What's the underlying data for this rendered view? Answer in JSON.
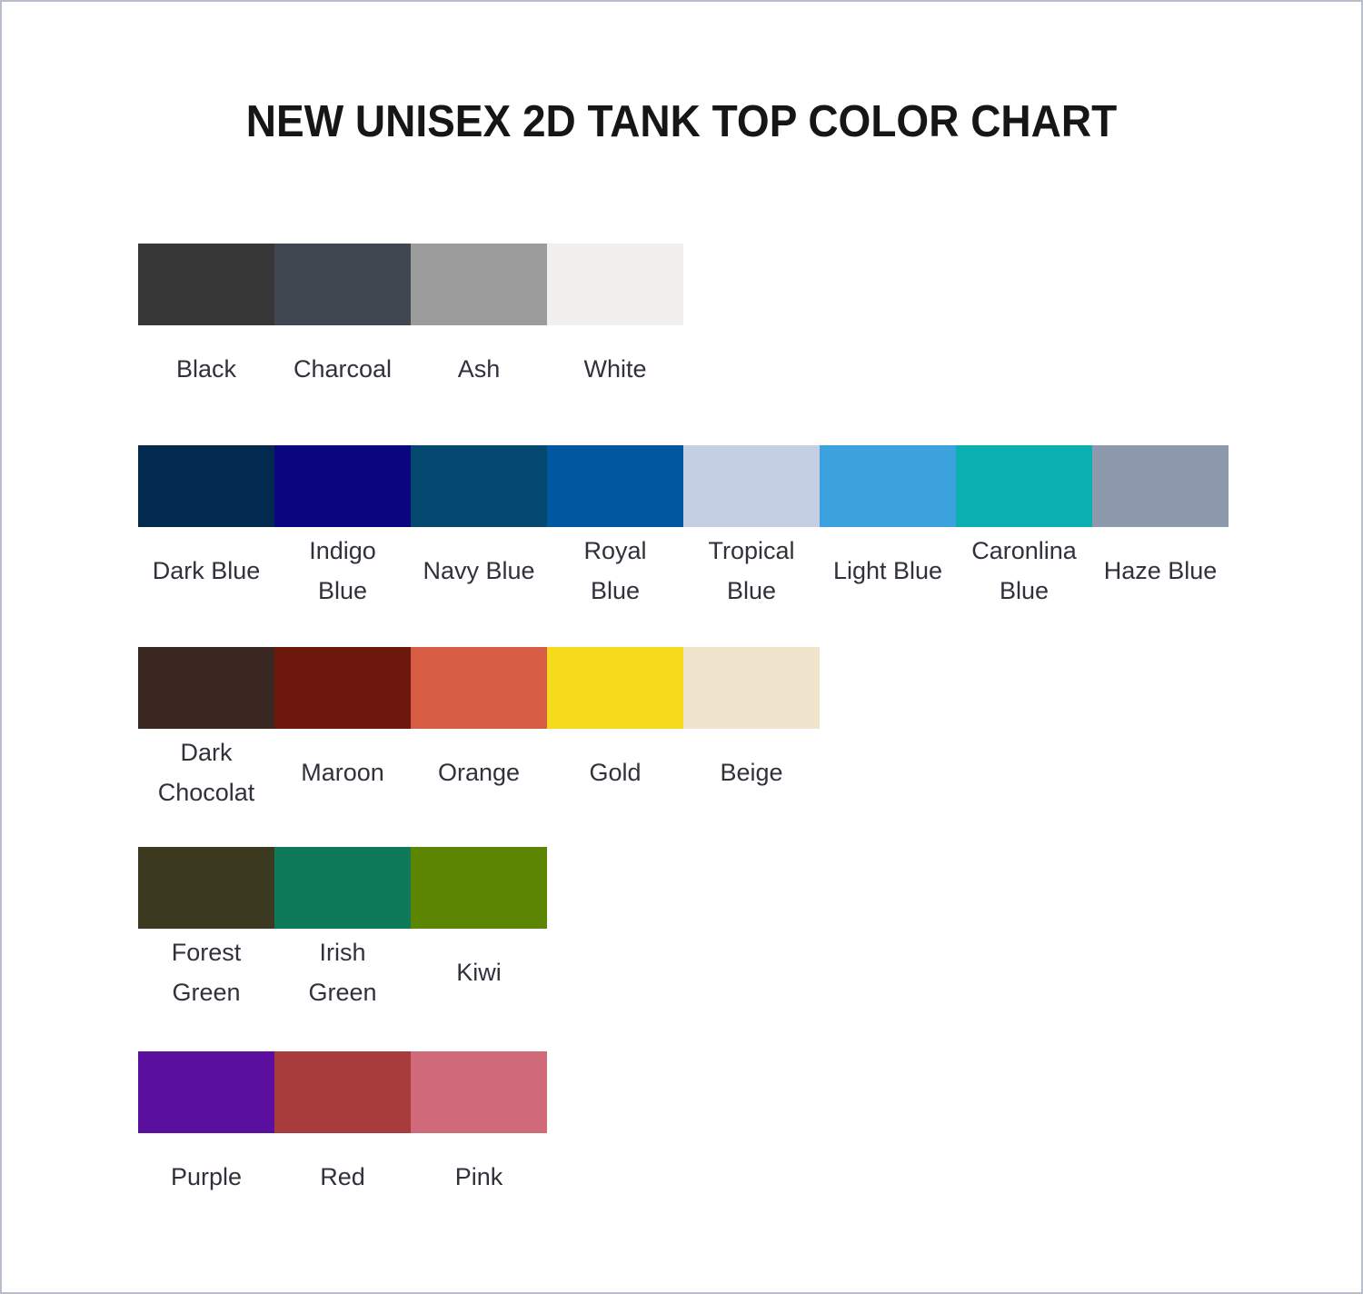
{
  "title": "NEW UNISEX 2D TANK TOP COLOR CHART",
  "chart_data": {
    "type": "table",
    "title": "NEW UNISEX 2D TANK TOP COLOR CHART",
    "layout": "5 horizontal swatch rows with centered labels beneath each swatch",
    "rows": [
      {
        "name": "neutrals",
        "swatches": [
          {
            "label": "Black",
            "color": "#373737"
          },
          {
            "label": "Charcoal",
            "color": "#414750"
          },
          {
            "label": "Ash",
            "color": "#9d9c9c"
          },
          {
            "label": "White",
            "color": "#f1f0ef"
          }
        ]
      },
      {
        "name": "blues",
        "swatches": [
          {
            "label": "Dark Blue",
            "color": "#02294e"
          },
          {
            "label": "Indigo\nBlue",
            "color": "#0a0680"
          },
          {
            "label": "Navy Blue",
            "color": "#03486f"
          },
          {
            "label": "Royal\nBlue",
            "color": "#0058a0"
          },
          {
            "label": "Tropical\nBlue",
            "color": "#c5cfe4"
          },
          {
            "label": "Light Blue",
            "color": "#3ba2de"
          },
          {
            "label": "Caronlina\nBlue",
            "color": "#09b0af"
          },
          {
            "label": "Haze Blue",
            "color": "#8d99ac"
          }
        ]
      },
      {
        "name": "warms",
        "swatches": [
          {
            "label": "Dark\nChocolat",
            "color": "#3a2721"
          },
          {
            "label": "Maroon",
            "color": "#6c180c"
          },
          {
            "label": "Orange",
            "color": "#d65c43"
          },
          {
            "label": "Gold",
            "color": "#f8da1c"
          },
          {
            "label": "Beige",
            "color": "#f1e4cd"
          }
        ]
      },
      {
        "name": "greens",
        "swatches": [
          {
            "label": "Forest\nGreen",
            "color": "#3b3a20"
          },
          {
            "label": "Irish\nGreen",
            "color": "#0e7a59"
          },
          {
            "label": "Kiwi",
            "color": "#5c8502"
          }
        ]
      },
      {
        "name": "purples-reds",
        "swatches": [
          {
            "label": "Purple",
            "color": "#5a0f9e"
          },
          {
            "label": "Red",
            "color": "#a83c3c"
          },
          {
            "label": "Pink",
            "color": "#d0697a"
          }
        ]
      }
    ]
  },
  "style": {
    "page_border": "#b7bec9",
    "title_color": "#161616",
    "label_color": "#31313b",
    "background": "#ffffff"
  }
}
